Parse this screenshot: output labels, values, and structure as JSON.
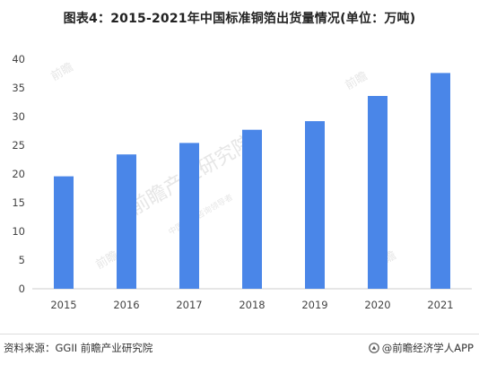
{
  "title": "图表4：2015-2021年中国标准铜箔出货量情况(单位：万吨)",
  "source": "资料来源：GGII 前瞻产业研究院",
  "brand": "@前瞻经济学人APP",
  "watermark": {
    "logo_text": "前瞻",
    "center_text": "前瞻产业研究院",
    "sub_text": "中国产业咨询领导者"
  },
  "colors": {
    "bar": "#4A86E8",
    "axis": "#cccccc"
  },
  "chart_data": {
    "type": "bar",
    "title": "图表4：2015-2021年中国标准铜箔出货量情况(单位：万吨)",
    "categories": [
      "2015",
      "2016",
      "2017",
      "2018",
      "2019",
      "2020",
      "2021"
    ],
    "values": [
      19.6,
      23.4,
      25.4,
      27.7,
      29.2,
      33.6,
      37.6
    ],
    "ylim": [
      0,
      40
    ],
    "yticks": [
      0,
      5,
      10,
      15,
      20,
      25,
      30,
      35,
      40
    ],
    "xlabel": "",
    "ylabel": "",
    "grid": false,
    "legend": "none"
  }
}
